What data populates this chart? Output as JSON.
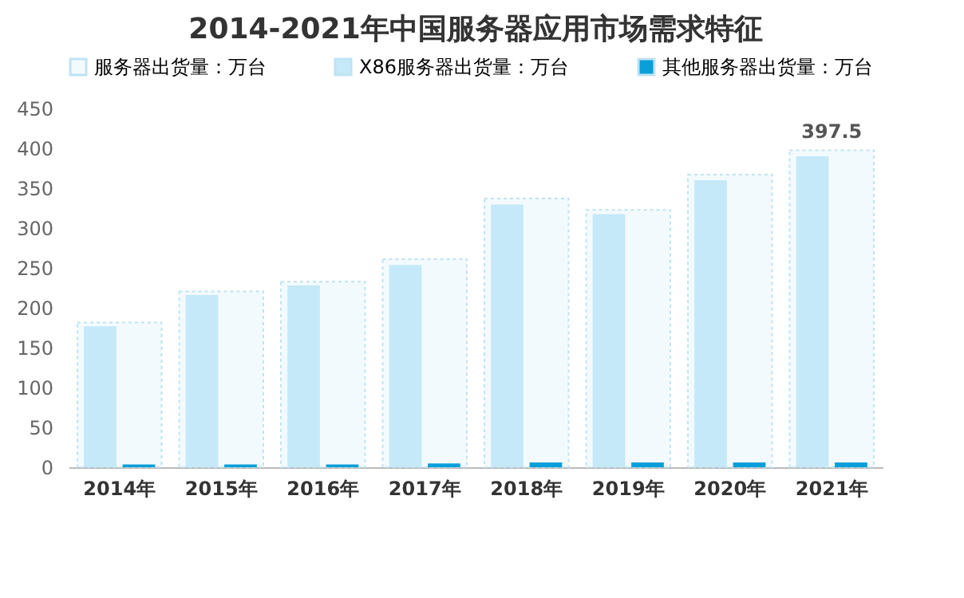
{
  "chart_data": {
    "type": "bar",
    "title": "2014-2021年中国服务器应用市场需求特征",
    "categories": [
      "2014年",
      "2015年",
      "2016年",
      "2017年",
      "2018年",
      "2019年",
      "2020年",
      "2021年"
    ],
    "series": [
      {
        "name": "服务器出货量：万台",
        "color": "#f3fafe",
        "values": [
          181.5,
          220.6,
          232.8,
          261,
          337,
          322.8,
          367,
          397.5
        ],
        "value_labels": [
          null,
          null,
          null,
          null,
          null,
          null,
          null,
          "397.5"
        ]
      },
      {
        "name": "X86服务器出货量：万台",
        "color": "#c5e9f8",
        "values": [
          176.8,
          216,
          228,
          253.7,
          329.5,
          317.4,
          360,
          390
        ]
      },
      {
        "name": "其他服务器出货量：万台",
        "color": "#0a9fd9",
        "values": [
          3.4,
          3.4,
          3.4,
          4.7,
          6,
          6,
          6,
          6
        ]
      }
    ],
    "ylim": [
      0,
      450
    ],
    "yticks": [
      0,
      50,
      100,
      150,
      200,
      250,
      300,
      350,
      400,
      450
    ],
    "grid": false,
    "legend": "top"
  }
}
